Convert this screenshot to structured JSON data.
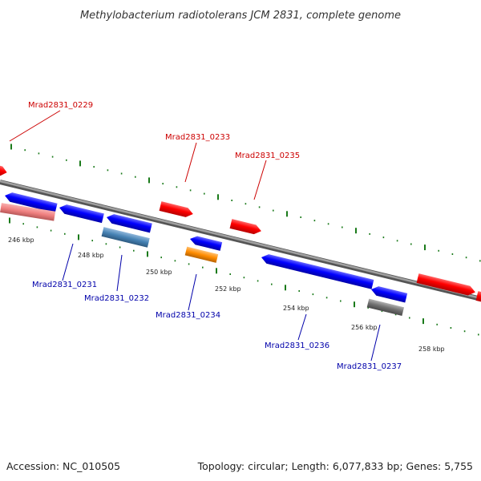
{
  "title": "Methylobacterium radiotolerans JCM 2831, complete genome",
  "footer": {
    "accession": "Accession: NC_010505",
    "summary": "Topology: circular; Length: 6,077,833 bp; Genes: 5,755"
  },
  "colors": {
    "backbone": "#8a8a8a",
    "tick": "#1a7a1a",
    "forward_label": "#cc0000",
    "reverse_label": "#0000aa",
    "red": "#ff0000",
    "blue": "#0000ff",
    "pink": "#f08080",
    "steelblue": "#4682b4",
    "orange": "#ff8c00",
    "gray": "#707070"
  },
  "tick_labels": [
    "246 kbp",
    "248 kbp",
    "250 kbp",
    "252 kbp",
    "254 kbp",
    "256 kbp",
    "258 kbp"
  ],
  "genes": [
    {
      "label": "Mrad2831_0229",
      "strand": "forward",
      "color": "red"
    },
    {
      "label": "Mrad2831_0233",
      "strand": "forward",
      "color": "red"
    },
    {
      "label": "Mrad2831_0235",
      "strand": "forward",
      "color": "red"
    },
    {
      "label": "Mrad2831_0231",
      "strand": "reverse",
      "color": "blue"
    },
    {
      "label": "Mrad2831_0232",
      "strand": "reverse",
      "color": "steelblue"
    },
    {
      "label": "Mrad2831_0234",
      "strand": "reverse",
      "color": "orange"
    },
    {
      "label": "Mrad2831_0236",
      "strand": "reverse",
      "color": "blue"
    },
    {
      "label": "Mrad2831_0237",
      "strand": "reverse",
      "color": "gray"
    }
  ]
}
